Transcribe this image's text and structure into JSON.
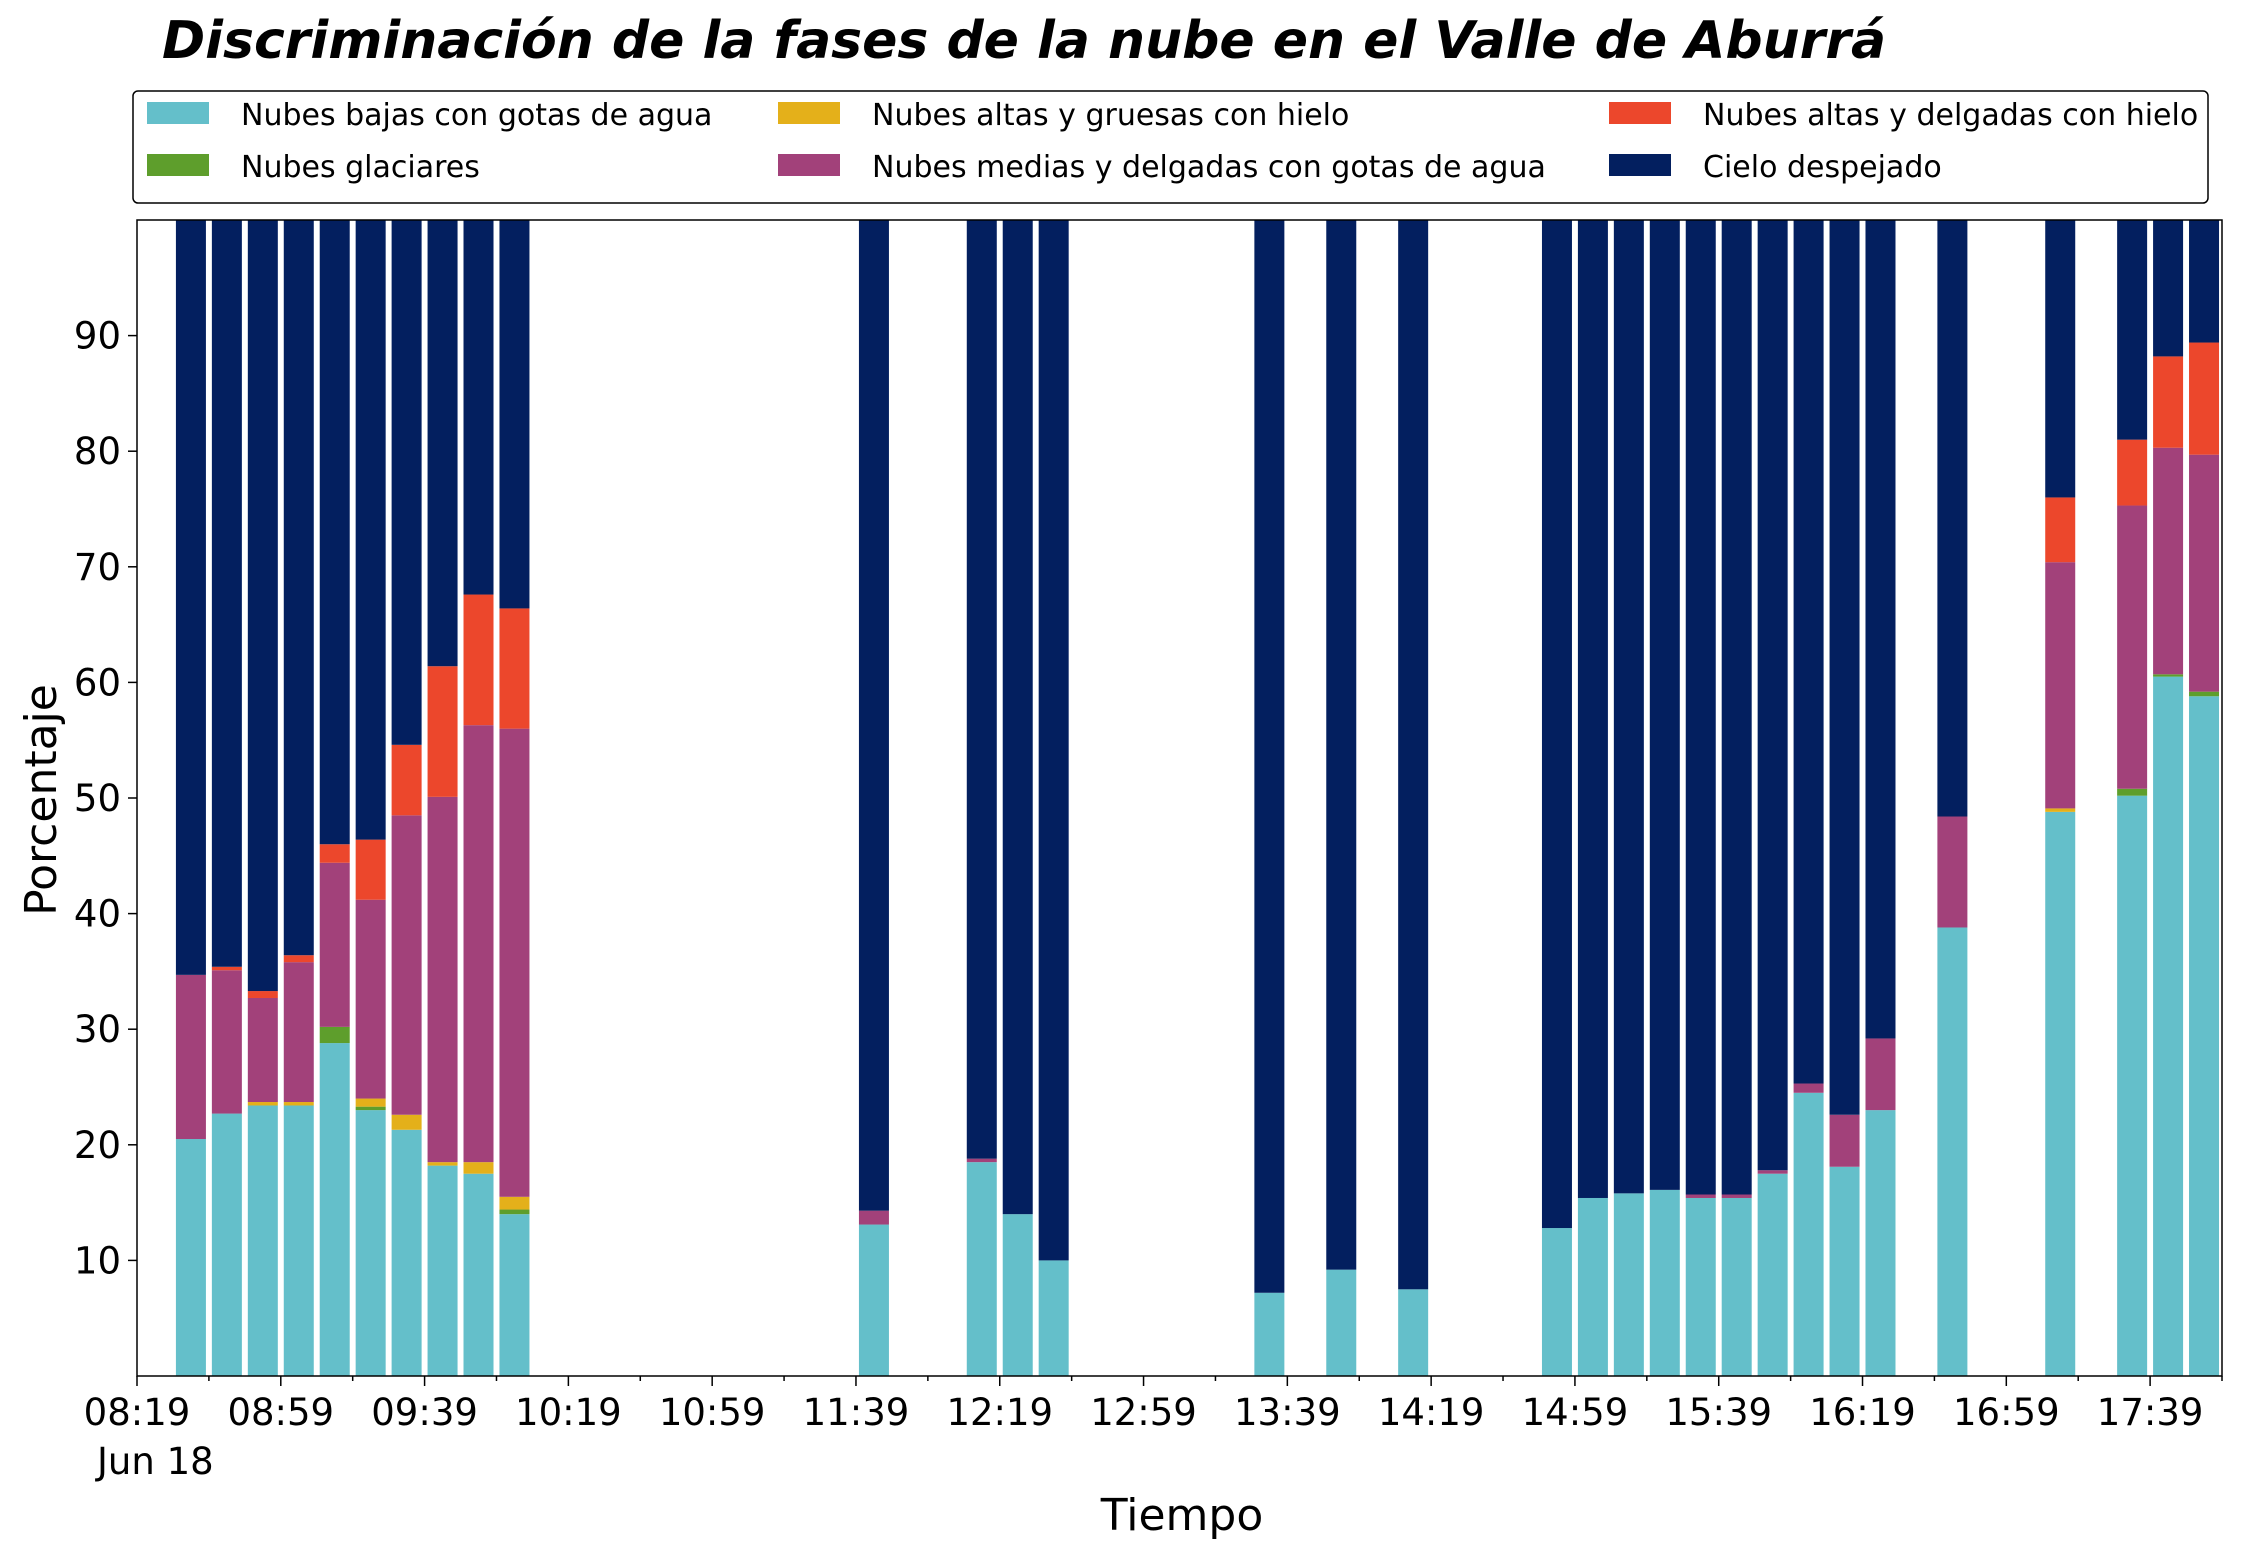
{
  "chart_data": {
    "type": "bar",
    "stacked": true,
    "title": "Discriminación de la fases de la nube en el Valle de Aburrá",
    "xlabel": "Tiempo",
    "ylabel": "Porcentaje",
    "x_start_label": "08:19",
    "x_date_label": "Jun 18",
    "x_tick_labels": [
      "08:19",
      "08:59",
      "09:39",
      "10:19",
      "10:59",
      "11:39",
      "12:19",
      "12:59",
      "13:39",
      "14:19",
      "14:59",
      "15:39",
      "16:19",
      "16:59",
      "17:39"
    ],
    "y_ticks": [
      10,
      20,
      30,
      40,
      50,
      60,
      70,
      80,
      90
    ],
    "ylim": [
      0,
      100
    ],
    "x_range": [
      "08:19",
      "17:59"
    ],
    "legend_position": "top, outside plot, 3 columns",
    "grid": false,
    "time_slots": [
      "08:34",
      "08:44",
      "08:54",
      "09:04",
      "09:14",
      "09:24",
      "09:34",
      "09:44",
      "09:54",
      "10:04",
      "11:44",
      "12:14",
      "12:24",
      "12:34",
      "13:34",
      "13:54",
      "14:14",
      "14:54",
      "15:04",
      "15:14",
      "15:24",
      "15:34",
      "15:44",
      "15:54",
      "16:04",
      "16:14",
      "16:24",
      "16:44",
      "17:14",
      "17:34",
      "17:44",
      "17:54"
    ],
    "series": [
      {
        "name": "Nubes bajas con gotas de agua",
        "color": "#64bfca",
        "values": [
          20.5,
          22.7,
          23.4,
          23.4,
          28.8,
          23.0,
          21.3,
          18.2,
          17.5,
          14.0,
          13.1,
          18.5,
          14.0,
          10.0,
          7.2,
          9.2,
          7.5,
          12.8,
          15.4,
          15.8,
          16.1,
          15.4,
          15.4,
          17.5,
          24.5,
          18.1,
          23.0,
          38.8,
          48.8,
          50.2,
          60.5,
          58.8
        ]
      },
      {
        "name": "Nubes glaciares",
        "color": "#5e9e2c",
        "values": [
          0,
          0,
          0,
          0,
          1.4,
          0.3,
          0,
          0,
          0,
          0.4,
          0,
          0,
          0,
          0,
          0,
          0,
          0,
          0,
          0,
          0,
          0,
          0,
          0,
          0,
          0,
          0,
          0,
          0,
          0,
          0.6,
          0.2,
          0.4
        ]
      },
      {
        "name": "Nubes altas y gruesas con hielo",
        "color": "#e4b01a",
        "values": [
          0,
          0,
          0.3,
          0.3,
          0,
          0.7,
          1.3,
          0.3,
          1.0,
          1.1,
          0,
          0,
          0,
          0,
          0,
          0,
          0,
          0,
          0,
          0,
          0,
          0,
          0,
          0,
          0,
          0,
          0,
          0,
          0.3,
          0,
          0,
          0
        ]
      },
      {
        "name": "Nubes medias y delgadas con gotas de agua",
        "color": "#a2417a",
        "values": [
          14.2,
          12.4,
          9.0,
          12.1,
          14.2,
          17.2,
          25.9,
          31.6,
          37.8,
          40.5,
          1.2,
          0.3,
          0,
          0,
          0,
          0,
          0,
          0,
          0,
          0,
          0,
          0.3,
          0.3,
          0.3,
          0.8,
          4.5,
          6.2,
          9.6,
          21.3,
          24.5,
          19.6,
          20.5
        ]
      },
      {
        "name": "Nubes altas y delgadas con hielo",
        "color": "#ec472c",
        "values": [
          0,
          0.3,
          0.6,
          0.6,
          1.6,
          5.2,
          6.1,
          11.3,
          11.3,
          10.4,
          0,
          0,
          0,
          0,
          0,
          0,
          0,
          0,
          0,
          0,
          0,
          0,
          0,
          0,
          0,
          0,
          0,
          0,
          5.6,
          5.7,
          7.9,
          9.7
        ]
      },
      {
        "name": "Cielo despejado",
        "color": "#031f5f",
        "values": [
          65.3,
          64.6,
          66.7,
          63.6,
          54.0,
          53.6,
          45.4,
          38.6,
          32.4,
          33.6,
          85.7,
          81.2,
          86.0,
          90.0,
          92.8,
          90.8,
          92.5,
          87.2,
          84.6,
          84.2,
          83.9,
          84.3,
          84.3,
          82.2,
          74.7,
          77.4,
          70.8,
          51.6,
          24.0,
          19.0,
          11.8,
          10.6
        ]
      }
    ]
  }
}
